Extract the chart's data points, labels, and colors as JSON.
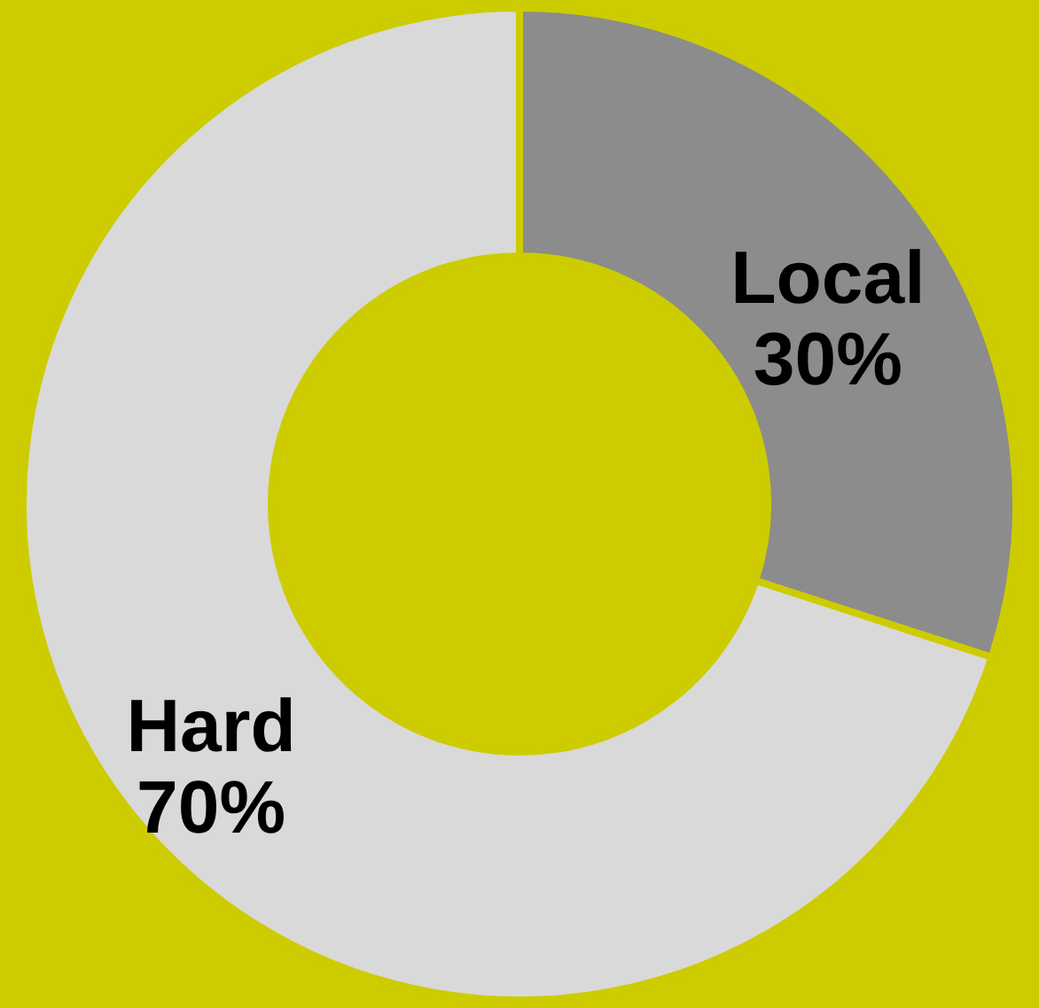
{
  "chart_data": {
    "type": "donut",
    "categories": [
      "Local",
      "Hard"
    ],
    "values": [
      30,
      70
    ],
    "value_labels": [
      "30%",
      "70%"
    ],
    "colors": [
      "#8c8c8c",
      "#d9d9d9"
    ]
  }
}
